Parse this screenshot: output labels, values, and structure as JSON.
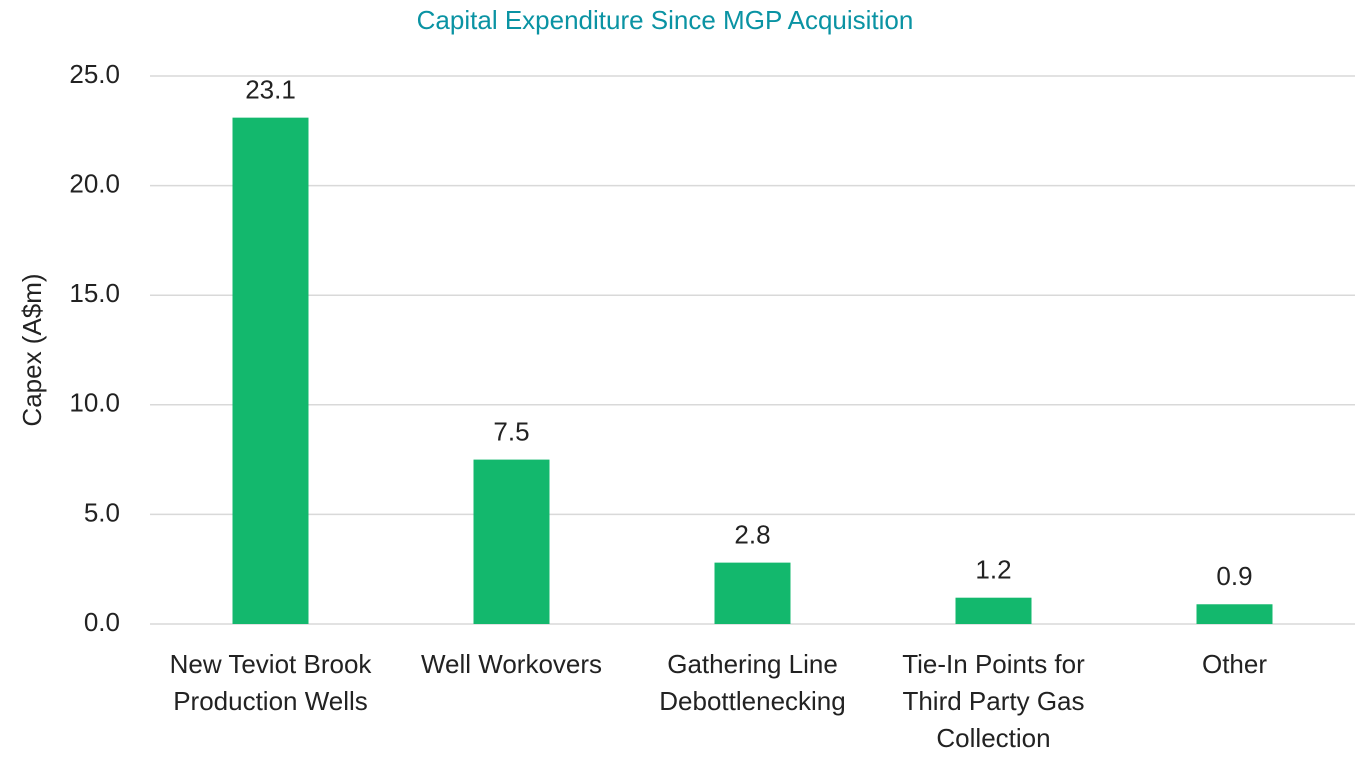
{
  "chart_data": {
    "type": "bar",
    "title": "Capital Expenditure Since MGP Acquisition",
    "y_label": "Capex (A$m)",
    "categories": [
      "New Teviot Brook Production Wells",
      "Well Workovers",
      "Gathering Line Debottlenecking",
      "Tie-In Points for Third Party Gas Collection",
      "Other"
    ],
    "values": [
      23.1,
      7.5,
      2.8,
      1.2,
      0.9
    ],
    "color": "#13b86d",
    "ylim": [
      0,
      25
    ],
    "yticks": [
      {
        "value": 0,
        "label": "0.0"
      },
      {
        "value": 5,
        "label": "5.0"
      },
      {
        "value": 10,
        "label": "10.0"
      },
      {
        "value": 15,
        "label": "15.0"
      },
      {
        "value": 20,
        "label": "20.0"
      },
      {
        "value": 25,
        "label": "25.0"
      }
    ],
    "grid": true
  }
}
